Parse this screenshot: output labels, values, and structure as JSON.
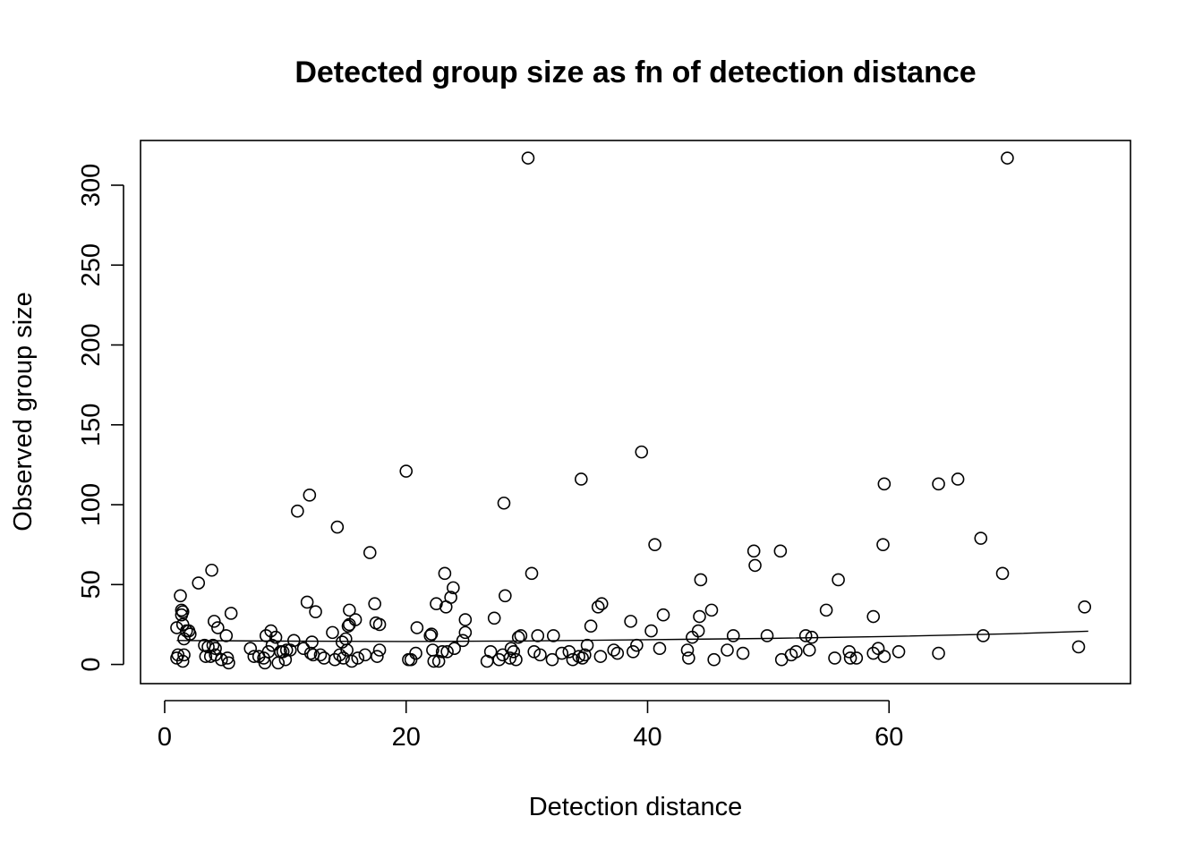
{
  "chart_data": {
    "type": "scatter",
    "title": "Detected group size as fn of detection distance",
    "xlabel": "Detection distance",
    "ylabel": "Observed group size",
    "xlim": [
      -2,
      80
    ],
    "ylim": [
      -12,
      328
    ],
    "xticks": [
      0,
      20,
      40,
      60
    ],
    "yticks": [
      0,
      50,
      100,
      150,
      200,
      250,
      300
    ],
    "grid": false,
    "legend": "none",
    "points": [
      [
        1.0,
        23
      ],
      [
        1.0,
        4
      ],
      [
        1.1,
        6
      ],
      [
        1.3,
        43
      ],
      [
        1.4,
        34
      ],
      [
        1.4,
        31
      ],
      [
        1.5,
        33
      ],
      [
        1.5,
        25
      ],
      [
        1.5,
        2
      ],
      [
        1.6,
        6
      ],
      [
        1.6,
        16
      ],
      [
        1.8,
        21
      ],
      [
        2.0,
        21
      ],
      [
        2.1,
        19
      ],
      [
        2.8,
        51
      ],
      [
        3.3,
        12
      ],
      [
        3.4,
        5
      ],
      [
        3.6,
        11
      ],
      [
        3.8,
        5
      ],
      [
        3.9,
        59
      ],
      [
        4.0,
        12
      ],
      [
        4.1,
        27
      ],
      [
        4.2,
        10
      ],
      [
        4.2,
        6
      ],
      [
        4.4,
        23
      ],
      [
        4.7,
        3
      ],
      [
        5.1,
        18
      ],
      [
        5.2,
        4
      ],
      [
        5.3,
        1
      ],
      [
        5.5,
        32
      ],
      [
        7.1,
        10
      ],
      [
        7.4,
        5
      ],
      [
        7.8,
        5
      ],
      [
        8.2,
        4
      ],
      [
        8.3,
        1
      ],
      [
        8.4,
        18
      ],
      [
        8.6,
        8
      ],
      [
        8.8,
        21
      ],
      [
        8.9,
        12
      ],
      [
        9.2,
        17
      ],
      [
        9.4,
        1
      ],
      [
        9.6,
        8
      ],
      [
        9.8,
        8
      ],
      [
        10.0,
        3
      ],
      [
        10.1,
        9
      ],
      [
        10.4,
        9
      ],
      [
        10.7,
        15
      ],
      [
        11.0,
        96
      ],
      [
        11.5,
        10
      ],
      [
        11.8,
        39
      ],
      [
        12.0,
        106
      ],
      [
        12.1,
        7
      ],
      [
        12.2,
        14
      ],
      [
        12.3,
        6
      ],
      [
        12.5,
        33
      ],
      [
        12.9,
        6
      ],
      [
        13.2,
        4
      ],
      [
        13.9,
        20
      ],
      [
        14.1,
        3
      ],
      [
        14.3,
        86
      ],
      [
        14.5,
        6
      ],
      [
        14.7,
        14
      ],
      [
        14.8,
        4
      ],
      [
        15.0,
        16
      ],
      [
        15.1,
        9
      ],
      [
        15.2,
        24
      ],
      [
        15.3,
        34
      ],
      [
        15.3,
        25
      ],
      [
        15.5,
        2
      ],
      [
        15.8,
        28
      ],
      [
        16.0,
        4
      ],
      [
        16.6,
        6
      ],
      [
        17.0,
        70
      ],
      [
        17.4,
        38
      ],
      [
        17.5,
        26
      ],
      [
        17.6,
        5
      ],
      [
        17.8,
        9
      ],
      [
        17.8,
        25
      ],
      [
        20.0,
        121
      ],
      [
        20.2,
        3
      ],
      [
        20.4,
        3
      ],
      [
        20.8,
        7
      ],
      [
        20.9,
        23
      ],
      [
        22.0,
        18
      ],
      [
        22.1,
        19
      ],
      [
        22.2,
        9
      ],
      [
        22.3,
        2
      ],
      [
        22.5,
        38
      ],
      [
        22.7,
        2
      ],
      [
        23.0,
        8
      ],
      [
        23.2,
        57
      ],
      [
        23.3,
        36
      ],
      [
        23.4,
        8
      ],
      [
        23.7,
        42
      ],
      [
        23.9,
        48
      ],
      [
        24.0,
        10
      ],
      [
        24.7,
        15
      ],
      [
        24.9,
        20
      ],
      [
        24.9,
        28
      ],
      [
        26.7,
        2
      ],
      [
        27.0,
        8
      ],
      [
        27.3,
        29
      ],
      [
        27.7,
        3
      ],
      [
        28.0,
        6
      ],
      [
        28.1,
        101
      ],
      [
        28.2,
        43
      ],
      [
        28.6,
        4
      ],
      [
        28.7,
        10
      ],
      [
        28.9,
        8
      ],
      [
        29.1,
        3
      ],
      [
        29.3,
        17
      ],
      [
        29.5,
        18
      ],
      [
        30.1,
        317
      ],
      [
        30.4,
        57
      ],
      [
        30.6,
        8
      ],
      [
        30.9,
        18
      ],
      [
        31.1,
        6
      ],
      [
        32.1,
        3
      ],
      [
        32.2,
        18
      ],
      [
        32.9,
        7
      ],
      [
        33.5,
        8
      ],
      [
        33.8,
        3
      ],
      [
        34.3,
        5
      ],
      [
        34.5,
        116
      ],
      [
        34.6,
        4
      ],
      [
        34.8,
        6
      ],
      [
        35.0,
        12
      ],
      [
        35.3,
        24
      ],
      [
        35.9,
        36
      ],
      [
        36.1,
        5
      ],
      [
        36.2,
        38
      ],
      [
        37.2,
        9
      ],
      [
        37.5,
        7
      ],
      [
        38.6,
        27
      ],
      [
        38.8,
        8
      ],
      [
        39.1,
        12
      ],
      [
        39.5,
        133
      ],
      [
        40.3,
        21
      ],
      [
        40.6,
        75
      ],
      [
        41.0,
        10
      ],
      [
        41.3,
        31
      ],
      [
        43.3,
        9
      ],
      [
        43.4,
        4
      ],
      [
        43.7,
        17
      ],
      [
        44.2,
        21
      ],
      [
        44.3,
        30
      ],
      [
        44.4,
        53
      ],
      [
        45.3,
        34
      ],
      [
        45.5,
        3
      ],
      [
        46.6,
        9
      ],
      [
        47.1,
        18
      ],
      [
        47.9,
        7
      ],
      [
        48.8,
        71
      ],
      [
        48.9,
        62
      ],
      [
        49.9,
        18
      ],
      [
        51.1,
        3
      ],
      [
        51.0,
        71
      ],
      [
        51.9,
        6
      ],
      [
        52.3,
        8
      ],
      [
        53.1,
        18
      ],
      [
        53.4,
        9
      ],
      [
        53.6,
        17
      ],
      [
        54.8,
        34
      ],
      [
        55.5,
        4
      ],
      [
        55.8,
        53
      ],
      [
        56.7,
        8
      ],
      [
        56.8,
        4
      ],
      [
        57.3,
        4
      ],
      [
        58.7,
        30
      ],
      [
        58.7,
        7
      ],
      [
        59.1,
        10
      ],
      [
        59.5,
        75
      ],
      [
        59.6,
        113
      ],
      [
        59.6,
        5
      ],
      [
        60.8,
        8
      ],
      [
        64.1,
        7
      ],
      [
        64.1,
        113
      ],
      [
        65.7,
        116
      ],
      [
        67.6,
        79
      ],
      [
        67.8,
        18
      ],
      [
        69.4,
        57
      ],
      [
        69.8,
        317
      ],
      [
        75.7,
        11
      ],
      [
        76.2,
        36
      ]
    ],
    "fit_line": {
      "x": [
        1,
        10,
        20,
        30,
        40,
        50,
        60,
        70,
        76.5
      ],
      "y": [
        15.0,
        14.6,
        14.4,
        14.7,
        15.5,
        16.3,
        17.5,
        19.2,
        20.8
      ]
    }
  }
}
